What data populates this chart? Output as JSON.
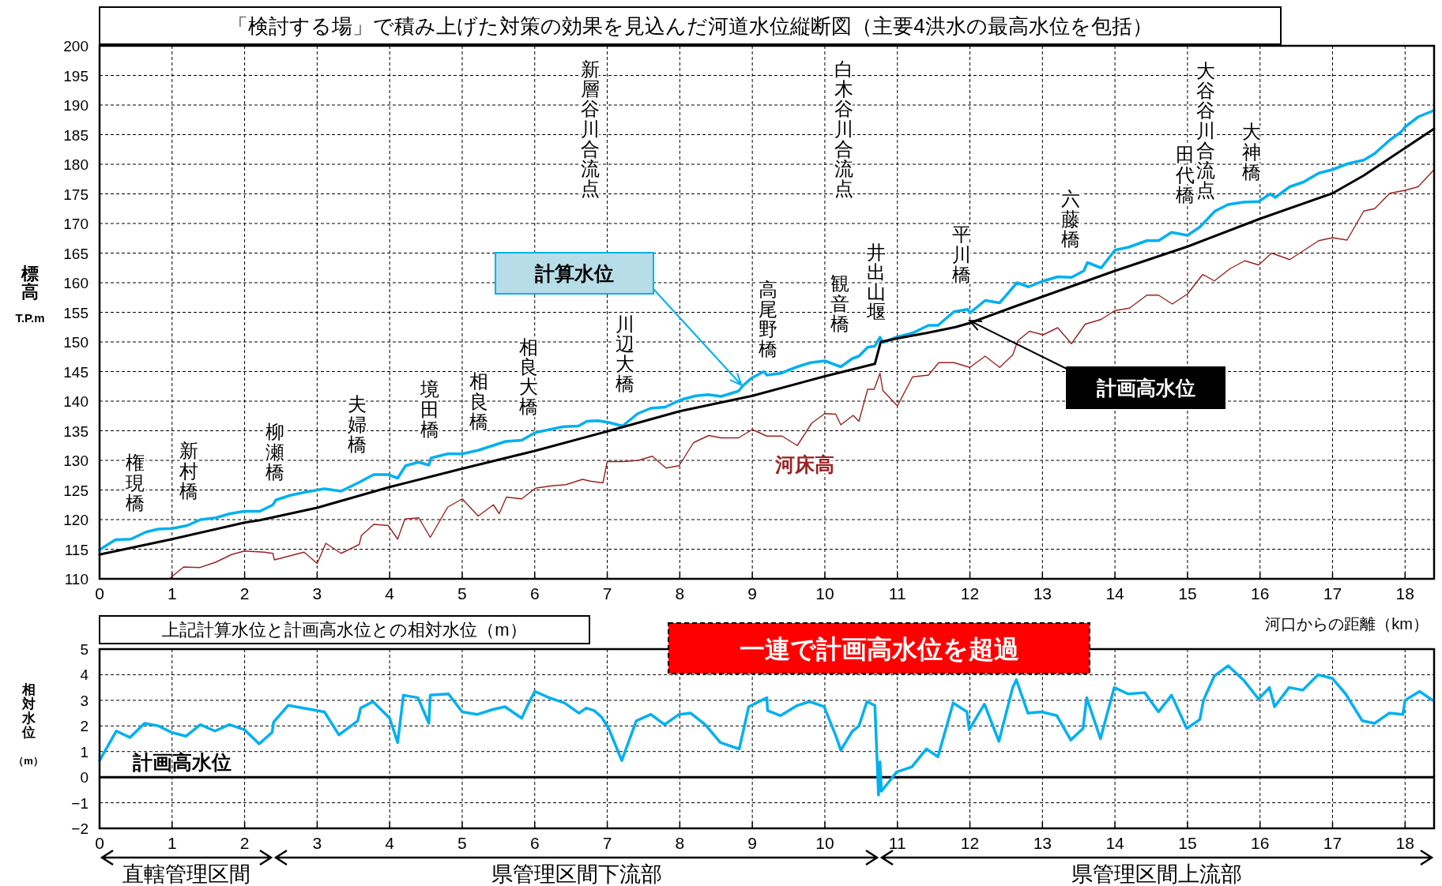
{
  "chart_data": [
    {
      "type": "line",
      "title": "「検討する場」で積み上げた対策の効果を見込んだ河道水位縦断図（主要4洪水の最高水位を包括）",
      "xlabel": "河口からの距離（km）",
      "ylabel": "標高T.P.m",
      "xlim": [
        0,
        18.4
      ],
      "ylim": [
        110,
        200
      ],
      "xticks": [
        0,
        1,
        2,
        3,
        4,
        5,
        6,
        7,
        8,
        9,
        10,
        11,
        12,
        13,
        14,
        15,
        16,
        17,
        18
      ],
      "yticks": [
        110,
        115,
        120,
        125,
        130,
        135,
        140,
        145,
        150,
        155,
        160,
        165,
        170,
        175,
        180,
        185,
        190,
        195,
        200
      ],
      "grid": true,
      "series": [
        {
          "name": "計算水位",
          "color": "#00b0f0",
          "x": [
            0,
            0.22,
            0.43,
            0.64,
            0.81,
            1.0,
            1.21,
            1.39,
            1.6,
            1.8,
            1.99,
            2.21,
            2.39,
            2.43,
            2.63,
            2.82,
            3.1,
            3.33,
            3.58,
            3.78,
            3.98,
            4.11,
            4.22,
            4.4,
            4.54,
            4.57,
            4.8,
            5.0,
            5.22,
            5.6,
            5.82,
            6.01,
            6.4,
            6.6,
            6.72,
            6.87,
            7.02,
            7.21,
            7.42,
            7.6,
            7.8,
            8.01,
            8.22,
            8.39,
            8.57,
            8.81,
            8.87,
            8.99,
            9.16,
            9.2,
            9.39,
            9.62,
            9.8,
            10.0,
            10.22,
            10.38,
            10.47,
            10.59,
            10.69,
            10.76,
            10.8,
            10.99,
            11.21,
            11.43,
            11.56,
            11.78,
            11.97,
            12.0,
            12.21,
            12.41,
            12.65,
            12.81,
            12.99,
            13.21,
            13.4,
            13.57,
            13.62,
            13.81,
            14.0,
            14.19,
            14.44,
            14.6,
            14.78,
            15.0,
            15.17,
            15.38,
            15.56,
            15.77,
            15.98,
            16.14,
            16.21,
            16.41,
            16.6,
            16.81,
            17.0,
            17.21,
            17.43,
            17.58,
            17.79,
            17.94,
            18.0,
            18.18,
            18.4
          ],
          "values": [
            114.9,
            116.6,
            116.7,
            117.9,
            118.4,
            118.5,
            119,
            120,
            120.3,
            121,
            121.4,
            121.4,
            122.5,
            123.3,
            124.1,
            124.6,
            125.2,
            124.8,
            126.3,
            127.6,
            127.6,
            127,
            129.1,
            129.7,
            129.2,
            130.4,
            131.1,
            131.1,
            131.7,
            133.2,
            133.4,
            134.7,
            135.7,
            135.8,
            136.6,
            136.7,
            136.4,
            135.8,
            137.9,
            138.8,
            139,
            140.2,
            140.9,
            141.1,
            140.8,
            141.7,
            142.6,
            143.9,
            145,
            144.4,
            144.7,
            145.8,
            146.5,
            146.8,
            145.8,
            147.2,
            147.6,
            149.1,
            149.3,
            150.8,
            149.9,
            150.8,
            151.5,
            152.8,
            152.8,
            155.1,
            155.5,
            154.9,
            157,
            156.6,
            160,
            159.3,
            160.2,
            161,
            160.9,
            162,
            163.4,
            162.5,
            165.5,
            166,
            167.1,
            167.1,
            168.5,
            168,
            169.4,
            172.1,
            173.2,
            173.6,
            173.7,
            175,
            174.4,
            176.2,
            177,
            178.5,
            179.1,
            180.1,
            180.7,
            181.8,
            184.1,
            185.4,
            186.3,
            188,
            189.1
          ]
        },
        {
          "name": "計画高水位",
          "color": "#000000",
          "x": [
            0,
            1,
            2,
            2.21,
            3,
            4,
            5,
            6,
            7,
            8,
            9,
            10,
            10.69,
            10.77,
            11,
            11.4,
            11.8,
            12,
            12.6,
            14,
            15,
            16,
            17,
            17.43,
            18.4
          ],
          "values": [
            114.1,
            116.7,
            119.5,
            119.9,
            122,
            125.5,
            128.6,
            131.6,
            134.9,
            138.3,
            140.9,
            144.2,
            146.3,
            150,
            150.6,
            151.5,
            152.5,
            153.2,
            155.9,
            162,
            166.1,
            170.8,
            175.1,
            178.1,
            186
          ]
        },
        {
          "name": "河床高",
          "color": "#992222",
          "x": [
            0.96,
            1.16,
            1.38,
            1.6,
            1.82,
            2.0,
            2.27,
            2.39,
            2.41,
            2.82,
            3.0,
            3.12,
            3.33,
            3.58,
            3.61,
            3.78,
            3.98,
            4.11,
            4.21,
            4.4,
            4.56,
            4.8,
            5.0,
            5.22,
            5.43,
            5.51,
            5.61,
            5.82,
            6.01,
            6.23,
            6.43,
            6.66,
            6.76,
            6.94,
            7.0,
            7.22,
            7.43,
            7.62,
            7.81,
            7.99,
            8.19,
            8.4,
            8.57,
            8.81,
            9.0,
            9.2,
            9.41,
            9.62,
            9.82,
            10.0,
            10.15,
            10.22,
            10.39,
            10.47,
            10.59,
            10.68,
            10.76,
            10.8,
            11.0,
            11.21,
            11.43,
            11.57,
            11.78,
            12.0,
            12.21,
            12.41,
            12.59,
            12.66,
            12.82,
            13.01,
            13.21,
            13.4,
            13.59,
            13.81,
            14.0,
            14.2,
            14.44,
            14.6,
            14.79,
            15.0,
            15.21,
            15.37,
            15.59,
            15.79,
            15.98,
            16.16,
            16.41,
            16.81,
            17.0,
            17.2,
            17.43,
            17.58,
            17.79,
            18.0,
            18.18,
            18.4
          ],
          "values": [
            110,
            112,
            111.9,
            112.8,
            114.1,
            114.7,
            114.5,
            114.3,
            113.2,
            114.5,
            112.6,
            116,
            114.3,
            115.8,
            117.3,
            119.2,
            119,
            116.7,
            120.1,
            120.3,
            117,
            122.1,
            123.5,
            120.6,
            122.5,
            121,
            123.8,
            123.5,
            125.3,
            125.7,
            125.9,
            126.8,
            126.5,
            126.2,
            129.8,
            129.8,
            130,
            130.7,
            128.7,
            129.1,
            133,
            134.2,
            133.8,
            133.8,
            135.2,
            134.1,
            134.1,
            132.5,
            136.3,
            137.9,
            137.8,
            136,
            137.6,
            136.6,
            142,
            142,
            144.7,
            141.8,
            139.2,
            144.1,
            144.4,
            146.5,
            146.5,
            145.7,
            147.6,
            145.7,
            147.8,
            150.2,
            151.8,
            151.2,
            152.4,
            149.7,
            153,
            153.8,
            155.3,
            155.7,
            157.9,
            157.9,
            156.4,
            158.1,
            161.4,
            160.3,
            162.4,
            163.7,
            163,
            165,
            163.9,
            167.1,
            167.6,
            167.2,
            172.1,
            172.5,
            175.1,
            175.6,
            176.2,
            179.1
          ]
        }
      ],
      "annotations": [
        "権現橋",
        "新村橋",
        "柳瀬橋",
        "夫婦橋",
        "境田橋",
        "相良橋",
        "相良大橋",
        "新層谷川合流点",
        "川辺大橋",
        "高尾野橋",
        "観音橋",
        "白木谷川合流点",
        "井出山堰",
        "平川橋",
        "六藤橋",
        "田代橋",
        "大谷谷川合流点",
        "大神橋"
      ]
    },
    {
      "type": "line",
      "title": "上記計算水位と計画高水位との相対水位（m）",
      "ylabel": "相対水位（m）",
      "xlim": [
        0,
        18.4
      ],
      "ylim": [
        -2,
        5
      ],
      "xticks": [
        0,
        1,
        2,
        3,
        4,
        5,
        6,
        7,
        8,
        9,
        10,
        11,
        12,
        13,
        14,
        15,
        16,
        17,
        18
      ],
      "yticks": [
        {
          "value": -2,
          "label": "−2"
        },
        {
          "value": -1,
          "label": "−1"
        },
        0,
        1,
        2,
        3,
        4,
        5
      ],
      "grid": true,
      "series": [
        {
          "color": "#00b0f0",
          "x": [
            0,
            0.23,
            0.42,
            0.62,
            0.81,
            0.99,
            1.19,
            1.39,
            1.59,
            1.79,
            2.0,
            2.2,
            2.38,
            2.4,
            2.6,
            3.1,
            3.3,
            3.56,
            3.6,
            3.77,
            4.0,
            4.11,
            4.19,
            4.39,
            4.54,
            4.56,
            4.81,
            5.0,
            5.21,
            5.43,
            5.59,
            5.82,
            5.91,
            6.0,
            6.2,
            6.41,
            6.61,
            6.71,
            6.82,
            6.92,
            7.02,
            7.2,
            7.4,
            7.6,
            7.79,
            7.99,
            8.15,
            8.35,
            8.56,
            8.82,
            8.95,
            9.2,
            9.21,
            9.39,
            9.62,
            9.79,
            9.99,
            10.16,
            10.22,
            10.38,
            10.47,
            10.58,
            10.69,
            10.74,
            10.76,
            10.78,
            10.99,
            11.2,
            11.4,
            11.56,
            11.77,
            11.96,
            11.99,
            12.2,
            12.4,
            12.59,
            12.64,
            12.8,
            12.99,
            13.2,
            13.39,
            13.56,
            13.61,
            13.8,
            13.99,
            14.18,
            14.41,
            14.6,
            14.78,
            14.99,
            15.17,
            15.22,
            15.37,
            15.56,
            15.77,
            15.98,
            16.13,
            16.2,
            16.4,
            16.59,
            16.8,
            17.0,
            17.18,
            17.41,
            17.58,
            17.78,
            17.97,
            18.0,
            18.2,
            18.38
          ],
          "values": [
            0.65,
            1.8,
            1.55,
            2.1,
            2.0,
            1.75,
            1.6,
            2.05,
            1.8,
            2.05,
            1.85,
            1.3,
            1.75,
            2.15,
            2.8,
            2.55,
            1.65,
            2.2,
            2.7,
            2.95,
            2.3,
            1.35,
            3.2,
            3.1,
            2.1,
            3.2,
            3.25,
            2.55,
            2.45,
            2.65,
            2.75,
            2.3,
            2.85,
            3.35,
            3.1,
            2.9,
            2.5,
            2.7,
            2.6,
            2.35,
            1.9,
            0.65,
            2.2,
            2.45,
            2.05,
            2.45,
            2.5,
            2.05,
            1.35,
            1.1,
            2.75,
            3.1,
            2.6,
            2.4,
            2.8,
            2.95,
            2.75,
            1.55,
            1.05,
            1.8,
            2.0,
            2.95,
            2.8,
            -0.7,
            0.6,
            -0.55,
            0.2,
            0.4,
            1.1,
            0.8,
            2.9,
            2.55,
            1.85,
            2.85,
            1.4,
            3.5,
            3.8,
            2.5,
            2.55,
            2.4,
            1.45,
            1.9,
            3.1,
            1.5,
            3.5,
            3.25,
            3.3,
            2.55,
            3.2,
            1.9,
            2.25,
            3.0,
            3.95,
            4.35,
            3.8,
            3.05,
            3.5,
            2.75,
            3.5,
            3.4,
            4.0,
            3.85,
            3.25,
            2.2,
            2.1,
            2.5,
            2.45,
            3.0,
            3.35,
            3.0
          ]
        }
      ],
      "ref_lines": [
        {
          "axis": "y",
          "value": 0,
          "label": "計画高水位",
          "color": "#000000"
        }
      ],
      "annotations": [
        "一連で計画高水位を超過",
        "直轄管理区間",
        "県管理区間下流部",
        "県管理区間上流部"
      ]
    }
  ]
}
